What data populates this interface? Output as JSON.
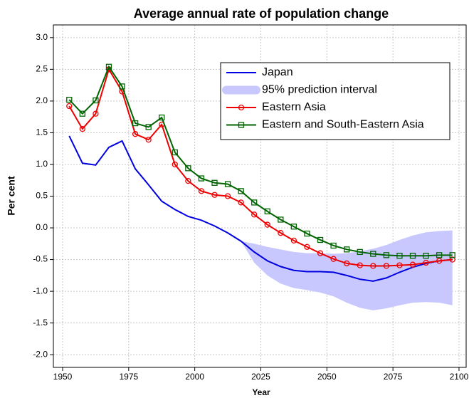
{
  "chart_data": {
    "type": "line",
    "title": "Average annual rate of population change",
    "x_label": "Year",
    "y_label": "Per cent",
    "x": [
      1952.5,
      1957.5,
      1962.5,
      1967.5,
      1972.5,
      1977.5,
      1982.5,
      1987.5,
      1992.5,
      1997.5,
      2002.5,
      2007.5,
      2012.5,
      2017.5,
      2022.5,
      2027.5,
      2032.5,
      2037.5,
      2042.5,
      2047.5,
      2052.5,
      2057.5,
      2062.5,
      2067.5,
      2072.5,
      2077.5,
      2082.5,
      2087.5,
      2092.5,
      2097.5
    ],
    "series": [
      {
        "name": "Japan",
        "color": "#0000e0",
        "marker": "none",
        "values": [
          1.45,
          1.02,
          0.99,
          1.27,
          1.37,
          0.93,
          0.68,
          0.42,
          0.29,
          0.18,
          0.12,
          0.03,
          -0.08,
          -0.21,
          -0.38,
          -0.52,
          -0.61,
          -0.67,
          -0.69,
          -0.69,
          -0.7,
          -0.75,
          -0.81,
          -0.84,
          -0.79,
          -0.7,
          -0.62,
          -0.56,
          -0.52,
          -0.5
        ]
      },
      {
        "name": "95% prediction interval",
        "color": "#c8c8ff",
        "marker": "band",
        "x": [
          2017.5,
          2022.5,
          2027.5,
          2032.5,
          2037.5,
          2042.5,
          2047.5,
          2052.5,
          2057.5,
          2062.5,
          2067.5,
          2072.5,
          2077.5,
          2082.5,
          2087.5,
          2092.5,
          2097.5
        ],
        "lower": [
          -0.21,
          -0.55,
          -0.75,
          -0.88,
          -0.95,
          -0.98,
          -1.02,
          -1.08,
          -1.18,
          -1.26,
          -1.3,
          -1.27,
          -1.22,
          -1.18,
          -1.17,
          -1.18,
          -1.22
        ],
        "upper": [
          -0.21,
          -0.25,
          -0.3,
          -0.34,
          -0.38,
          -0.4,
          -0.4,
          -0.41,
          -0.4,
          -0.37,
          -0.33,
          -0.27,
          -0.19,
          -0.12,
          -0.07,
          -0.05,
          -0.04
        ]
      },
      {
        "name": "Eastern Asia",
        "color": "#ee0000",
        "marker": "circle",
        "values": [
          1.92,
          1.56,
          1.8,
          2.5,
          2.15,
          1.48,
          1.39,
          1.63,
          1.0,
          0.74,
          0.58,
          0.52,
          0.5,
          0.4,
          0.21,
          0.05,
          -0.08,
          -0.2,
          -0.3,
          -0.4,
          -0.49,
          -0.56,
          -0.59,
          -0.6,
          -0.6,
          -0.59,
          -0.58,
          -0.55,
          -0.52,
          -0.5
        ]
      },
      {
        "name": "Eastern and South-Eastern Asia",
        "color": "#006400",
        "marker": "square",
        "values": [
          2.02,
          1.8,
          2.01,
          2.54,
          2.23,
          1.65,
          1.59,
          1.74,
          1.19,
          0.94,
          0.78,
          0.71,
          0.69,
          0.58,
          0.4,
          0.26,
          0.13,
          0.02,
          -0.09,
          -0.19,
          -0.28,
          -0.34,
          -0.38,
          -0.41,
          -0.43,
          -0.44,
          -0.44,
          -0.44,
          -0.43,
          -0.43
        ]
      }
    ],
    "xlim": [
      1946.5,
      2102.7
    ],
    "ylim": [
      -2.2,
      3.2
    ],
    "xticks": [
      1950,
      1975,
      2000,
      2025,
      2050,
      2075,
      2100
    ],
    "yticks": [
      {
        "value": -2,
        "label": "-2.0"
      },
      -1.5,
      {
        "value": -1,
        "label": "-1.0"
      },
      -0.5,
      {
        "value": 0,
        "label": "0.0"
      },
      0.5,
      {
        "value": 1,
        "label": "1.0"
      },
      1.5,
      {
        "value": 2,
        "label": "2.0"
      },
      2.5,
      {
        "value": 3,
        "label": "3.0"
      }
    ],
    "grid": true,
    "legend": "upper right"
  }
}
